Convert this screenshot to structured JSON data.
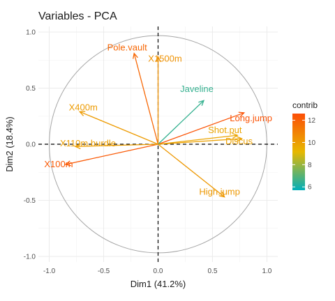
{
  "chart_data": {
    "type": "scatter",
    "subtype": "pca-variable-correlation-circle",
    "title": "Variables - PCA",
    "xlabel": "Dim1 (41.2%)",
    "ylabel": "Dim2 (18.4%)",
    "xlim": [
      -1.1,
      1.1
    ],
    "ylim": [
      -1.05,
      1.05
    ],
    "x_ticks": [
      -1.0,
      -0.5,
      0.0,
      0.5,
      1.0
    ],
    "y_ticks": [
      -1.0,
      -0.5,
      0.0,
      0.5,
      1.0
    ],
    "x_tick_labels": [
      "-1.0",
      "-0.5",
      "0.0",
      "0.5",
      "1.0"
    ],
    "y_tick_labels": [
      "-1.0",
      "-0.5",
      "0.0",
      "0.5",
      "1.0"
    ],
    "grid": true,
    "unit_circle": true,
    "variables": [
      {
        "name": "X100m",
        "x": -0.85,
        "y": -0.18,
        "contrib": 12.2
      },
      {
        "name": "Long.jump",
        "x": 0.79,
        "y": 0.28,
        "contrib": 12.4
      },
      {
        "name": "Shot.put",
        "x": 0.73,
        "y": 0.08,
        "contrib": 9.8
      },
      {
        "name": "High.jump",
        "x": 0.61,
        "y": -0.47,
        "contrib": 10.2
      },
      {
        "name": "X400m",
        "x": -0.72,
        "y": 0.29,
        "contrib": 10.1
      },
      {
        "name": "X110m.hurdle",
        "x": -0.76,
        "y": -0.02,
        "contrib": 10.0
      },
      {
        "name": "Discus",
        "x": 0.77,
        "y": 0.05,
        "contrib": 9.9
      },
      {
        "name": "Pole.vault",
        "x": -0.22,
        "y": 0.81,
        "contrib": 11.8
      },
      {
        "name": "Javeline",
        "x": 0.42,
        "y": 0.39,
        "contrib": 6.5
      },
      {
        "name": "X1500m",
        "x": 0.0,
        "y": 0.78,
        "contrib": 10.4
      }
    ],
    "legend": {
      "title": "contrib",
      "position": "right",
      "ticks": [
        6,
        8,
        10,
        12
      ],
      "tick_labels": [
        "6",
        "8",
        "10",
        "12"
      ],
      "range": [
        5.7,
        12.6
      ],
      "colors": [
        "#00AFBB",
        "#E7B800",
        "#FC4E07"
      ]
    }
  }
}
